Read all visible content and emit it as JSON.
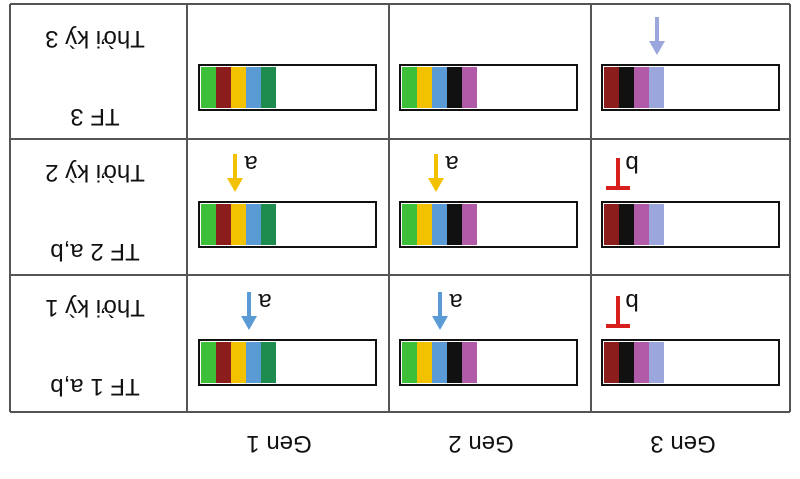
{
  "columns": [
    {
      "label": "Gen 1"
    },
    {
      "label": "Gen 2"
    },
    {
      "label": "Gen 3"
    }
  ],
  "rows": [
    {
      "tf_label": "TF 3",
      "stage_label": "Thời kỳ 3"
    },
    {
      "tf_label": "TF 2 a,b",
      "stage_label": "Thời kỳ 2"
    },
    {
      "tf_label": "TF 1 a,b",
      "stage_label": "Thời kỳ 1"
    }
  ],
  "colors": {
    "green": "#3dbf3a",
    "darkred": "#8b1d1d",
    "yellow": "#f2c200",
    "blue": "#5b9bd5",
    "darkgreen": "#1e8c4e",
    "black": "#111111",
    "magenta": "#b05aa8",
    "lavender": "#9aa6dc",
    "inhibit_red": "#d91e1e",
    "grid": "#555555"
  },
  "cells": [
    [
      {
        "segments": [
          "green",
          "darkred",
          "yellow",
          "blue",
          "darkgreen"
        ],
        "marker": null
      },
      {
        "segments": [
          "green",
          "yellow",
          "blue",
          "black",
          "magenta"
        ],
        "marker": null
      },
      {
        "segments": [
          "darkred",
          "black",
          "magenta",
          "lavender"
        ],
        "marker": {
          "type": "activate",
          "color": "lavender",
          "label": ""
        }
      }
    ],
    [
      {
        "segments": [
          "green",
          "darkred",
          "yellow",
          "blue",
          "darkgreen"
        ],
        "marker": {
          "type": "activate",
          "color": "yellow",
          "label": "a"
        }
      },
      {
        "segments": [
          "green",
          "yellow",
          "blue",
          "black",
          "magenta"
        ],
        "marker": {
          "type": "activate",
          "color": "yellow",
          "label": "a"
        }
      },
      {
        "segments": [
          "darkred",
          "black",
          "magenta",
          "lavender"
        ],
        "marker": {
          "type": "inhibit",
          "color": "inhibit_red",
          "label": "b"
        }
      }
    ],
    [
      {
        "segments": [
          "green",
          "darkred",
          "yellow",
          "blue",
          "darkgreen"
        ],
        "marker": {
          "type": "activate",
          "color": "blue",
          "label": "a"
        }
      },
      {
        "segments": [
          "green",
          "yellow",
          "blue",
          "black",
          "magenta"
        ],
        "marker": {
          "type": "activate",
          "color": "blue",
          "label": "a"
        }
      },
      {
        "segments": [
          "darkred",
          "black",
          "magenta",
          "lavender"
        ],
        "marker": {
          "type": "inhibit",
          "color": "inhibit_red",
          "label": "b"
        }
      }
    ]
  ]
}
